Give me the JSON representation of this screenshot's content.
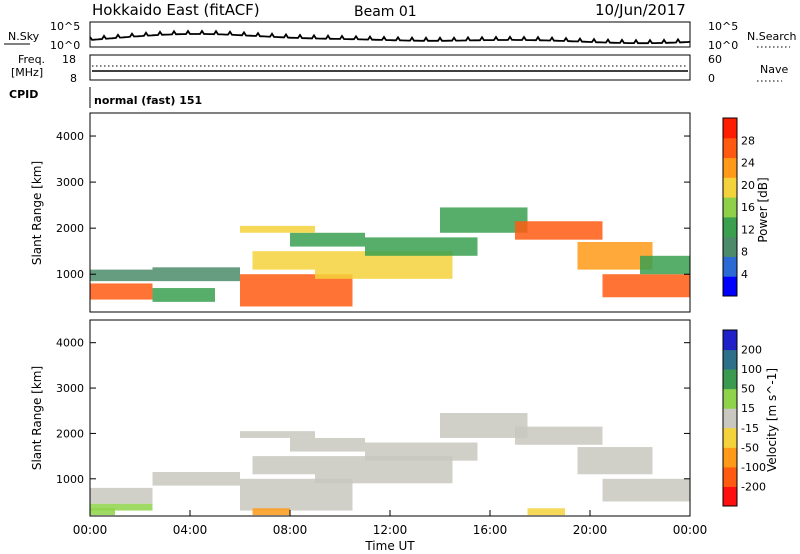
{
  "header": {
    "station": "Hokkaido East (fitACF)",
    "beam": "Beam 01",
    "date": "10/Jun/2017"
  },
  "panels": {
    "noise": {
      "left_label": "N.Sky",
      "left_ticks": [
        "10^5",
        "10^0"
      ],
      "right_ticks": [
        "10^5",
        "10^0"
      ],
      "right_label": "N.Search"
    },
    "freq": {
      "left_label_1": "Freq.",
      "left_label_2": "[MHz]",
      "left_ticks": [
        "18",
        "8"
      ],
      "right_ticks": [
        "60",
        "0"
      ],
      "right_label": "Nave"
    },
    "cpid": {
      "label": "CPID",
      "text": "normal (fast) 151"
    }
  },
  "chart_data": [
    {
      "type": "heatmap",
      "parameter": "Power",
      "ylabel": "Slant Range [km]",
      "xlabel": "",
      "ylim": [
        180,
        4500
      ],
      "y_ticks": [
        "1000",
        "2000",
        "3000",
        "4000"
      ],
      "colorbar": {
        "label": "Power [dB]",
        "range": [
          0,
          32
        ],
        "ticks": [
          "4",
          "8",
          "12",
          "16",
          "20",
          "24",
          "28"
        ],
        "colors": [
          "#0000ff",
          "#2b6ad4",
          "#4b8b6a",
          "#3aa050",
          "#8ed04a",
          "#f4d23c",
          "#ff9a18",
          "#ff5a10",
          "#ff1e00"
        ]
      },
      "regions": [
        {
          "t0": 0.0,
          "t1": 2.5,
          "r0": 450,
          "r1": 800,
          "value": 26
        },
        {
          "t0": 0.0,
          "t1": 2.5,
          "r0": 850,
          "r1": 1100,
          "value": 10
        },
        {
          "t0": 2.5,
          "t1": 6.0,
          "r0": 850,
          "r1": 1150,
          "value": 8
        },
        {
          "t0": 2.5,
          "t1": 5.0,
          "r0": 400,
          "r1": 700,
          "value": 14
        },
        {
          "t0": 6.0,
          "t1": 10.5,
          "r0": 300,
          "r1": 1000,
          "value": 27
        },
        {
          "t0": 6.5,
          "t1": 9.0,
          "r0": 1100,
          "r1": 1500,
          "value": 18
        },
        {
          "t0": 8.0,
          "t1": 11.0,
          "r0": 1600,
          "r1": 1900,
          "value": 14
        },
        {
          "t0": 6.0,
          "t1": 9.0,
          "r0": 1900,
          "r1": 2050,
          "value": 20
        },
        {
          "t0": 9.0,
          "t1": 14.5,
          "r0": 900,
          "r1": 1500,
          "value": 20
        },
        {
          "t0": 11.0,
          "t1": 15.5,
          "r0": 1400,
          "r1": 1800,
          "value": 14
        },
        {
          "t0": 14.0,
          "t1": 17.5,
          "r0": 1900,
          "r1": 2450,
          "value": 12
        },
        {
          "t0": 17.0,
          "t1": 20.5,
          "r0": 1750,
          "r1": 2150,
          "value": 26
        },
        {
          "t0": 19.5,
          "t1": 22.5,
          "r0": 1100,
          "r1": 1700,
          "value": 22
        },
        {
          "t0": 20.5,
          "t1": 24.0,
          "r0": 500,
          "r1": 1000,
          "value": 28
        },
        {
          "t0": 22.0,
          "t1": 24.0,
          "r0": 1000,
          "r1": 1400,
          "value": 12
        }
      ]
    },
    {
      "type": "heatmap",
      "parameter": "Velocity",
      "ylabel": "Slant Range [km]",
      "xlabel": "Time UT",
      "ylim": [
        180,
        4500
      ],
      "x_ticks": [
        "00:00",
        "04:00",
        "08:00",
        "12:00",
        "16:00",
        "20:00",
        "00:00"
      ],
      "y_ticks": [
        "1000",
        "2000",
        "3000",
        "4000"
      ],
      "colorbar": {
        "label": "Velocity [m s^-1]",
        "ticks": [
          "200",
          "100",
          "50",
          "15",
          "-15",
          "-50",
          "-100",
          "-200"
        ],
        "colors": [
          "#2020c8",
          "#2e6f8a",
          "#3c9a50",
          "#8ed34a",
          "#c8c8c0",
          "#f4d23c",
          "#ff9a18",
          "#ff5a10",
          "#ff1010"
        ]
      },
      "regions": [
        {
          "t0": 0.0,
          "t1": 2.5,
          "r0": 450,
          "r1": 800,
          "value": 0
        },
        {
          "t0": 0.0,
          "t1": 2.5,
          "r0": 300,
          "r1": 450,
          "value": 20
        },
        {
          "t0": 2.5,
          "t1": 6.0,
          "r0": 850,
          "r1": 1150,
          "value": 0
        },
        {
          "t0": 6.0,
          "t1": 10.5,
          "r0": 300,
          "r1": 1000,
          "value": 0
        },
        {
          "t0": 6.5,
          "t1": 8.0,
          "r0": 200,
          "r1": 350,
          "value": -60
        },
        {
          "t0": 6.5,
          "t1": 9.0,
          "r0": 1100,
          "r1": 1500,
          "value": 0
        },
        {
          "t0": 8.0,
          "t1": 11.0,
          "r0": 1600,
          "r1": 1900,
          "value": 0
        },
        {
          "t0": 6.0,
          "t1": 9.0,
          "r0": 1900,
          "r1": 2050,
          "value": 0
        },
        {
          "t0": 9.0,
          "t1": 14.5,
          "r0": 900,
          "r1": 1500,
          "value": 0
        },
        {
          "t0": 11.0,
          "t1": 15.5,
          "r0": 1400,
          "r1": 1800,
          "value": 0
        },
        {
          "t0": 14.0,
          "t1": 17.5,
          "r0": 1900,
          "r1": 2450,
          "value": 0
        },
        {
          "t0": 17.0,
          "t1": 20.5,
          "r0": 1750,
          "r1": 2150,
          "value": 0
        },
        {
          "t0": 19.5,
          "t1": 22.5,
          "r0": 1100,
          "r1": 1700,
          "value": 0
        },
        {
          "t0": 20.5,
          "t1": 24.0,
          "r0": 500,
          "r1": 1000,
          "value": 0
        },
        {
          "t0": 17.5,
          "t1": 19.0,
          "r0": 200,
          "r1": 350,
          "value": -30
        },
        {
          "t0": 0.0,
          "t1": 1.0,
          "r0": 200,
          "r1": 350,
          "value": 25
        }
      ]
    }
  ]
}
